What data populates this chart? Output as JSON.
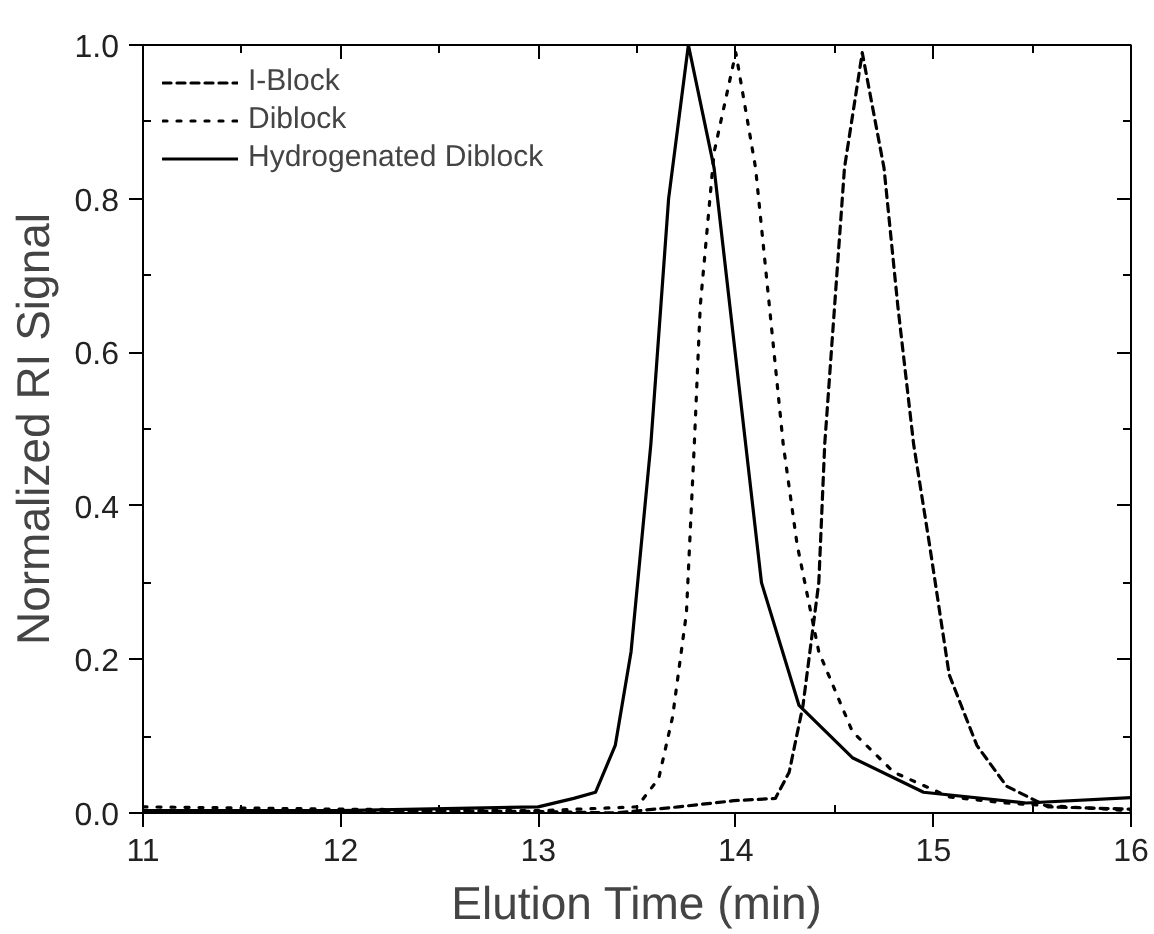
{
  "chart_data": {
    "type": "line",
    "xlabel": "Elution Time (min)",
    "ylabel": "Normalized RI Signal",
    "xlim": [
      11,
      16
    ],
    "ylim": [
      0,
      1.0
    ],
    "xticks": [
      11,
      12,
      13,
      14,
      15,
      16
    ],
    "yticks": [
      {
        "value": 0,
        "label": "0.0"
      },
      0.2,
      0.4,
      0.6,
      0.8,
      {
        "value": 1.0,
        "label": "1.0"
      }
    ],
    "grid": false,
    "legend": "top left",
    "marker": "none",
    "series": [
      {
        "name": "I-Block",
        "color": "#000000",
        "line_style": "dashed",
        "x": [
          11,
          12,
          13,
          13.39,
          13.71,
          13.99,
          14.2,
          14.27,
          14.34,
          14.42,
          14.45,
          14.5,
          14.55,
          14.64,
          14.75,
          14.82,
          14.9,
          14.98,
          15.08,
          15.22,
          15.37,
          15.58,
          16
        ],
        "values": [
          0.003,
          0.003,
          0.002,
          0.0,
          0.008,
          0.016,
          0.019,
          0.053,
          0.14,
          0.3,
          0.48,
          0.66,
          0.84,
          0.99,
          0.84,
          0.66,
          0.48,
          0.35,
          0.18,
          0.088,
          0.035,
          0.008,
          0.005
        ]
      },
      {
        "name": "Diblock",
        "color": "#000000",
        "line_style": "dotted",
        "x": [
          11,
          12,
          13,
          13.5,
          13.61,
          13.68,
          13.75,
          13.79,
          13.82,
          13.89,
          14.0,
          14.1,
          14.17,
          14.24,
          14.31,
          14.42,
          14.59,
          14.8,
          15.08,
          15.37,
          16
        ],
        "values": [
          0.008,
          0.005,
          0.003,
          0.008,
          0.045,
          0.125,
          0.26,
          0.48,
          0.66,
          0.86,
          0.99,
          0.84,
          0.66,
          0.48,
          0.35,
          0.21,
          0.106,
          0.053,
          0.021,
          0.013,
          0.003
        ]
      },
      {
        "name": "Hydrogenated Diblock",
        "color": "#000000",
        "line_style": "solid",
        "x": [
          11,
          12,
          13,
          13.18,
          13.29,
          13.39,
          13.47,
          13.57,
          13.66,
          13.76,
          13.89,
          14.05,
          14.13,
          14.32,
          14.59,
          14.95,
          15.47,
          16
        ],
        "values": [
          0.003,
          0.003,
          0.008,
          0.019,
          0.027,
          0.088,
          0.21,
          0.48,
          0.8,
          1.0,
          0.84,
          0.48,
          0.3,
          0.14,
          0.072,
          0.027,
          0.013,
          0.02
        ]
      }
    ]
  }
}
